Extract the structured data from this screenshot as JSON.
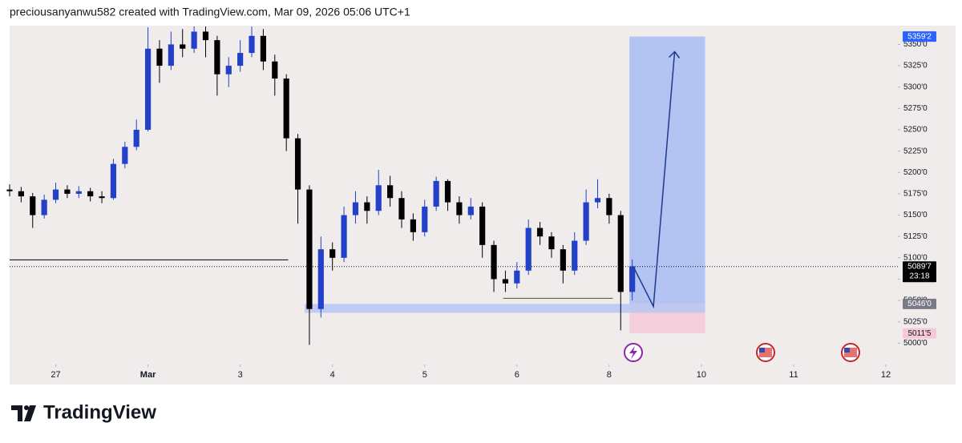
{
  "header": {
    "credit": "preciousanyanwu582 created with TradingView.com, Mar 09, 2026 05:06 UTC+1"
  },
  "chart_data": {
    "type": "candlestick",
    "up_color": "#2340c8",
    "down_color": "#000000",
    "xlim": [
      -0.5,
      9.13
    ],
    "xticks": [
      {
        "value": 0,
        "label": "27"
      },
      {
        "value": 1,
        "label": "Mar"
      },
      {
        "value": 2,
        "label": "3"
      },
      {
        "value": 3,
        "label": "4"
      },
      {
        "value": 4,
        "label": "5"
      },
      {
        "value": 5,
        "label": "6"
      },
      {
        "value": 6,
        "label": "8"
      },
      {
        "value": 7,
        "label": "10"
      },
      {
        "value": 8,
        "label": "11"
      },
      {
        "value": 9,
        "label": "12"
      }
    ],
    "ylim": [
      4975,
      5372
    ],
    "yticks": [
      {
        "value": 5000,
        "label": "5000'0"
      },
      {
        "value": 5025,
        "label": "5025'0"
      },
      {
        "value": 5050,
        "label": "5050'0"
      },
      {
        "value": 5075,
        "label": "5075'0"
      },
      {
        "value": 5100,
        "label": "5100'0"
      },
      {
        "value": 5125,
        "label": "5125'0"
      },
      {
        "value": 5150,
        "label": "5150'0"
      },
      {
        "value": 5175,
        "label": "5175'0"
      },
      {
        "value": 5200,
        "label": "5200'0"
      },
      {
        "value": 5225,
        "label": "5225'0"
      },
      {
        "value": 5250,
        "label": "5250'0"
      },
      {
        "value": 5275,
        "label": "5275'0"
      },
      {
        "value": 5300,
        "label": "5300'0"
      },
      {
        "value": 5325,
        "label": "5325'0"
      },
      {
        "value": 5350,
        "label": "5350'0"
      }
    ],
    "x": [
      -0.5,
      -0.375,
      -0.25,
      -0.125,
      0,
      0.125,
      0.25,
      0.375,
      0.5,
      0.625,
      0.75,
      0.875,
      1,
      1.125,
      1.25,
      1.375,
      1.5,
      1.625,
      1.75,
      1.875,
      2,
      2.125,
      2.25,
      2.375,
      2.5,
      2.625,
      2.75,
      2.875,
      3,
      3.125,
      3.25,
      3.375,
      3.5,
      3.625,
      3.75,
      3.875,
      4,
      4.125,
      4.25,
      4.375,
      4.5,
      4.625,
      4.75,
      4.875,
      5,
      5.125,
      5.25,
      5.375,
      5.5,
      5.625,
      5.75,
      5.875,
      6,
      6.125,
      6.25
    ],
    "open": [
      5180,
      5178,
      5172,
      5150,
      5168,
      5180,
      5175,
      5178,
      5172,
      5170,
      5210,
      5230,
      5250,
      5345,
      5325,
      5350,
      5345,
      5365,
      5355,
      5315,
      5325,
      5340,
      5360,
      5330,
      5310,
      5240,
      5180,
      5040,
      5110,
      5100,
      5150,
      5165,
      5155,
      5185,
      5170,
      5145,
      5130,
      5160,
      5190,
      5165,
      5150,
      5160,
      5115,
      5075,
      5070,
      5085,
      5135,
      5125,
      5110,
      5085,
      5120,
      5165,
      5170,
      5150,
      5060
    ],
    "high": [
      5186,
      5183,
      5176,
      5174,
      5188,
      5185,
      5184,
      5182,
      5178,
      5216,
      5236,
      5262,
      5370,
      5355,
      5365,
      5368,
      5371,
      5371,
      5360,
      5335,
      5355,
      5371,
      5368,
      5338,
      5315,
      5245,
      5185,
      5125,
      5118,
      5160,
      5178,
      5172,
      5203,
      5196,
      5178,
      5152,
      5168,
      5195,
      5192,
      5172,
      5170,
      5165,
      5120,
      5085,
      5095,
      5145,
      5142,
      5130,
      5115,
      5130,
      5180,
      5192,
      5175,
      5155,
      5098
    ],
    "low": [
      5172,
      5165,
      5135,
      5146,
      5164,
      5170,
      5170,
      5166,
      5164,
      5168,
      5205,
      5226,
      5248,
      5305,
      5320,
      5335,
      5340,
      5335,
      5290,
      5300,
      5318,
      5335,
      5320,
      5290,
      5225,
      5140,
      4998,
      5030,
      5085,
      5095,
      5140,
      5140,
      5150,
      5160,
      5135,
      5120,
      5125,
      5155,
      5155,
      5140,
      5145,
      5100,
      5060,
      5060,
      5064,
      5080,
      5115,
      5100,
      5070,
      5080,
      5115,
      5158,
      5140,
      5015,
      5050
    ],
    "close": [
      5178,
      5172,
      5150,
      5168,
      5180,
      5175,
      5178,
      5172,
      5170,
      5210,
      5230,
      5250,
      5345,
      5325,
      5350,
      5345,
      5365,
      5355,
      5315,
      5325,
      5340,
      5360,
      5330,
      5310,
      5240,
      5180,
      5040,
      5110,
      5100,
      5150,
      5165,
      5155,
      5185,
      5170,
      5145,
      5130,
      5160,
      5190,
      5165,
      5150,
      5160,
      5115,
      5075,
      5070,
      5085,
      5135,
      5125,
      5110,
      5085,
      5120,
      5165,
      5170,
      5150,
      5060,
      5090
    ],
    "level_line": {
      "value": 5097.6,
      "x": [
        -0.5,
        2.52
      ],
      "color": "#000000"
    },
    "support_line": {
      "value": 5052.5,
      "x": [
        4.85,
        6.04
      ],
      "color": "#3d5a2a"
    },
    "zone": {
      "top": 5046,
      "bottom": 5035.6,
      "x": [
        2.7,
        7.04
      ],
      "color": "#b7c6f5"
    },
    "position": {
      "entry": 5046,
      "target": 5359.2,
      "stop": 5011.5,
      "x": [
        6.22,
        7.04
      ],
      "target_color": "#b3c3f2",
      "stop_color": "#f4cedb"
    },
    "arrow": {
      "x": [
        6.26,
        6.48,
        6.71
      ],
      "y": [
        5090,
        5043,
        5341.5
      ]
    },
    "last_price": 5089.7,
    "price_labels": [
      {
        "value": 5359.2,
        "label": "5359'2",
        "color": "#2962ff"
      },
      {
        "value": 5089.7,
        "label": "5089'7",
        "countdown": "23:18",
        "color": "#000000"
      },
      {
        "value": 5046,
        "label": "5046'0",
        "color": "#787b86"
      },
      {
        "value": 5011.5,
        "label": "5011'5",
        "color": "#f7c8d6"
      }
    ]
  },
  "footer": {
    "brand": "TradingView"
  }
}
